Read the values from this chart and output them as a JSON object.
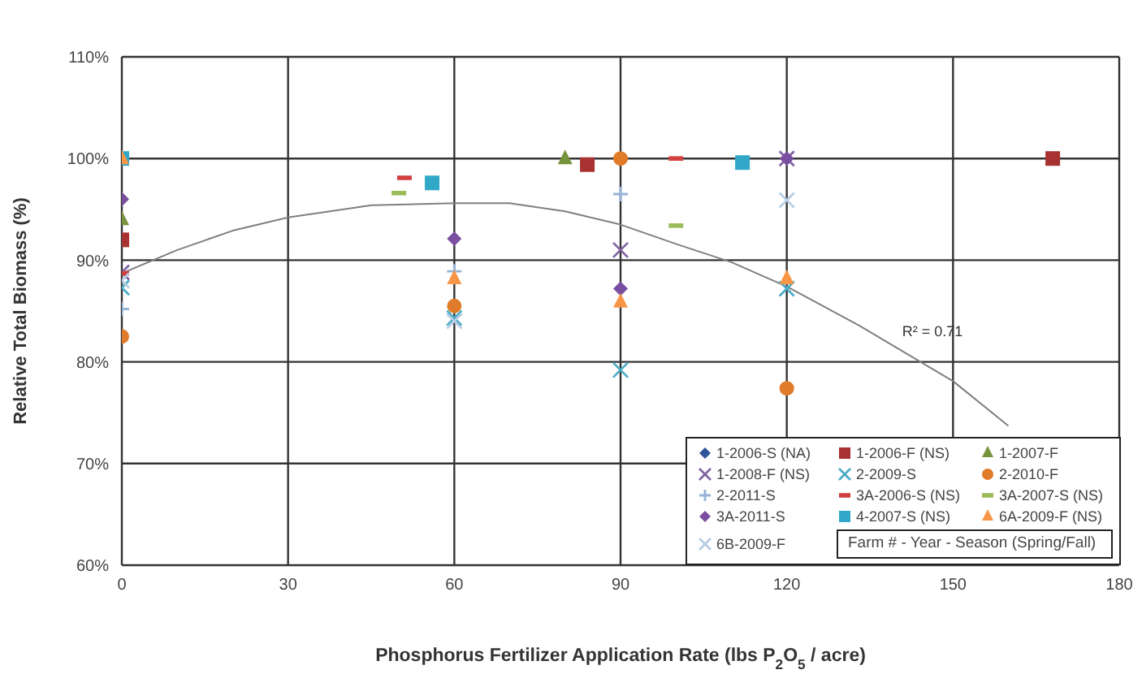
{
  "chart_data": {
    "type": "scatter",
    "xlabel": "Phosphorus Fertilizer Application Rate (lbs P$_{2}$O$_{5}$ / acre)",
    "ylabel": "Relative Total Biomass (%)",
    "legend_title": "Farm # - Year - Season (Spring/Fall)",
    "legend": "bottom right",
    "grid": true,
    "xlim": [
      0,
      180
    ],
    "xticks": [
      0,
      30,
      60,
      90,
      120,
      150,
      180
    ],
    "ylim": [
      60,
      110
    ],
    "yticks": [
      {
        "value": 60,
        "label": "60%"
      },
      {
        "value": 70,
        "label": "70%"
      },
      {
        "value": 80,
        "label": "80%"
      },
      {
        "value": 90,
        "label": "90%"
      },
      {
        "value": 100,
        "label": "100%"
      },
      {
        "value": 110,
        "label": "110%"
      }
    ],
    "annotations": [
      "R² = 0.71"
    ],
    "series": [
      {
        "name": "1-2006-S (NA)",
        "color": "#2f5597",
        "marker": "diamond"
      },
      {
        "name": "1-2006-F (NS)",
        "color": "#a83232",
        "marker": "square",
        "x": [
          0,
          84,
          168
        ],
        "values": [
          92,
          99.4,
          100
        ]
      },
      {
        "name": "1-2007-F",
        "color": "#77933c",
        "marker": "triangle",
        "x": [
          0,
          80
        ],
        "values": [
          94,
          100
        ]
      },
      {
        "name": "1-2008-F (NS)",
        "color": "#8064a2",
        "marker": "cross",
        "x": [
          0,
          90,
          120
        ],
        "values": [
          88.8,
          91,
          100
        ]
      },
      {
        "name": "2-2009-S",
        "color": "#4bacc6",
        "marker": "cross",
        "x": [
          0,
          60,
          90,
          120
        ],
        "values": [
          87.3,
          84.3,
          79.2,
          87.2
        ]
      },
      {
        "name": "2-2010-F",
        "color": "#e07b2a",
        "marker": "circle",
        "x": [
          0,
          60,
          90,
          120
        ],
        "values": [
          82.5,
          85.5,
          100,
          77.4
        ]
      },
      {
        "name": "2-2011-S",
        "color": "#95b3d7",
        "marker": "plus",
        "x": [
          0,
          60,
          90
        ],
        "values": [
          85.2,
          88.9,
          96.5
        ]
      },
      {
        "name": "3A-2006-S (NS)",
        "color": "#d04040",
        "x": [
          0,
          51,
          100
        ],
        "values": [
          88.7,
          98.1,
          100
        ]
      },
      {
        "name": "3A-2007-S (NS)",
        "color": "#9bbb59",
        "x": [
          50,
          100
        ],
        "values": [
          96.6,
          93.4
        ]
      },
      {
        "name": "3A-2011-S",
        "color": "#7a4fa0",
        "marker": "diamond",
        "x": [
          0,
          60,
          90,
          120
        ],
        "values": [
          96,
          92.1,
          87.2,
          100
        ]
      },
      {
        "name": "4-2007-S (NS)",
        "color": "#31a8c8",
        "marker": "square",
        "x": [
          0,
          56,
          112
        ],
        "values": [
          100,
          97.6,
          99.6
        ]
      },
      {
        "name": "6A-2009-F (NS)",
        "color": "#f79646",
        "marker": "triangle",
        "x": [
          0,
          60,
          90,
          120
        ],
        "values": [
          100,
          88.2,
          85.9,
          88.2
        ]
      },
      {
        "name": "6B-2009-F",
        "color": "#b8cce4",
        "marker": "cross",
        "x": [
          0,
          60,
          120
        ],
        "values": [
          88,
          84,
          95.9
        ]
      },
      {
        "type": "line",
        "color": "#7f7f7f",
        "marker": "none",
        "line_style": "solid",
        "x": [
          0,
          10,
          20,
          30,
          45,
          60,
          70,
          80,
          90,
          100,
          110,
          120,
          133,
          150,
          160
        ],
        "values": [
          88.7,
          91,
          92.9,
          94.2,
          95.4,
          95.6,
          95.6,
          94.8,
          93.5,
          91.6,
          89.8,
          87.4,
          83.6,
          78.1,
          73.7
        ]
      }
    ]
  }
}
